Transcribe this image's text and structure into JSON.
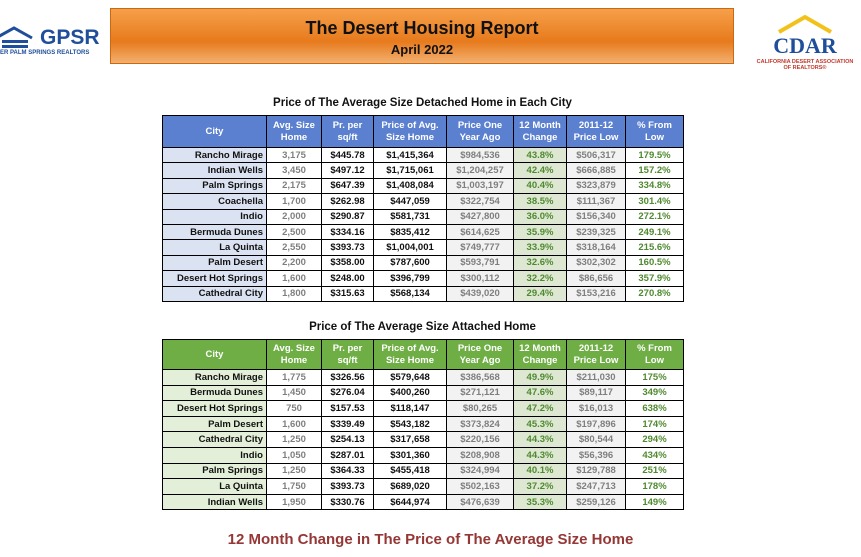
{
  "header": {
    "title": "The Desert Housing Report",
    "subtitle": "April 2022"
  },
  "left_logo": {
    "name": "GPSR",
    "tagline": "ER PALM SPRINGS REALTORS"
  },
  "right_logo": {
    "name": "CDAR",
    "tagline_1": "CALIFORNIA DESERT ASSOCIATION",
    "tagline_2": "OF REALTORS®"
  },
  "tables": [
    {
      "title": "Price of The Average Size Detached Home in Each City",
      "columns": [
        [
          "City"
        ],
        [
          "Avg. Size",
          "Home"
        ],
        [
          "Pr. per",
          "sq/ft"
        ],
        [
          "Price of Avg.",
          "Size Home"
        ],
        [
          "Price One",
          "Year Ago"
        ],
        [
          "12 Month",
          "Change"
        ],
        [
          "2011-12",
          "Price Low"
        ],
        [
          "% From",
          "Low"
        ]
      ],
      "rows": [
        [
          "Rancho Mirage",
          "3,175",
          "$445.78",
          "$1,415,364",
          "$984,536",
          "43.8%",
          "$506,317",
          "179.5%"
        ],
        [
          "Indian Wells",
          "3,450",
          "$497.12",
          "$1,715,061",
          "$1,204,257",
          "42.4%",
          "$666,885",
          "157.2%"
        ],
        [
          "Palm Springs",
          "2,175",
          "$647.39",
          "$1,408,084",
          "$1,003,197",
          "40.4%",
          "$323,879",
          "334.8%"
        ],
        [
          "Coachella",
          "1,700",
          "$262.98",
          "$447,059",
          "$322,754",
          "38.5%",
          "$111,367",
          "301.4%"
        ],
        [
          "Indio",
          "2,000",
          "$290.87",
          "$581,731",
          "$427,800",
          "36.0%",
          "$156,340",
          "272.1%"
        ],
        [
          "Bermuda Dunes",
          "2,500",
          "$334.16",
          "$835,412",
          "$614,625",
          "35.9%",
          "$239,325",
          "249.1%"
        ],
        [
          "La Quinta",
          "2,550",
          "$393.73",
          "$1,004,001",
          "$749,777",
          "33.9%",
          "$318,164",
          "215.6%"
        ],
        [
          "Palm Desert",
          "2,200",
          "$358.00",
          "$787,600",
          "$593,791",
          "32.6%",
          "$302,302",
          "160.5%"
        ],
        [
          "Desert Hot Springs",
          "1,600",
          "$248.00",
          "$396,799",
          "$300,112",
          "32.2%",
          "$86,656",
          "357.9%"
        ],
        [
          "Cathedral City",
          "1,800",
          "$315.63",
          "$568,134",
          "$439,020",
          "29.4%",
          "$153,216",
          "270.8%"
        ]
      ]
    },
    {
      "title": "Price of The Average Size Attached Home",
      "columns": [
        [
          "City"
        ],
        [
          "Avg. Size",
          "Home"
        ],
        [
          "Pr. per",
          "sq/ft"
        ],
        [
          "Price of Avg.",
          "Size Home"
        ],
        [
          "Price One",
          "Year Ago"
        ],
        [
          "12 Month",
          "Change"
        ],
        [
          "2011-12",
          "Price Low"
        ],
        [
          "% From",
          "Low"
        ]
      ],
      "rows": [
        [
          "Rancho Mirage",
          "1,775",
          "$326.56",
          "$579,648",
          "$386,568",
          "49.9%",
          "$211,030",
          "175%"
        ],
        [
          "Bermuda Dunes",
          "1,450",
          "$276.04",
          "$400,260",
          "$271,121",
          "47.6%",
          "$89,117",
          "349%"
        ],
        [
          "Desert Hot Springs",
          "750",
          "$157.53",
          "$118,147",
          "$80,265",
          "47.2%",
          "$16,013",
          "638%"
        ],
        [
          "Palm Desert",
          "1,600",
          "$339.49",
          "$543,182",
          "$373,824",
          "45.3%",
          "$197,896",
          "174%"
        ],
        [
          "Cathedral City",
          "1,250",
          "$254.13",
          "$317,658",
          "$220,156",
          "44.3%",
          "$80,544",
          "294%"
        ],
        [
          "Indio",
          "1,050",
          "$287.01",
          "$301,360",
          "$208,908",
          "44.3%",
          "$56,396",
          "434%"
        ],
        [
          "Palm Springs",
          "1,250",
          "$364.33",
          "$455,418",
          "$324,994",
          "40.1%",
          "$129,788",
          "251%"
        ],
        [
          "La Quinta",
          "1,750",
          "$393.73",
          "$689,020",
          "$502,163",
          "37.2%",
          "$247,713",
          "178%"
        ],
        [
          "Indian Wells",
          "1,950",
          "$330.76",
          "$644,974",
          "$476,639",
          "35.3%",
          "$259,126",
          "149%"
        ]
      ]
    }
  ],
  "footer": {
    "heading": "12 Month Change in The Price of The Average Size Home"
  }
}
